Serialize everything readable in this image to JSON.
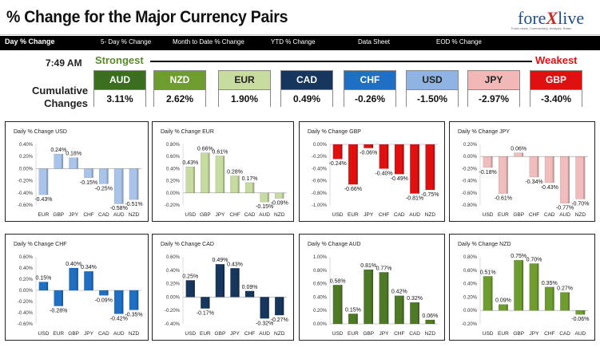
{
  "header": {
    "title": "% Change for the Major Currency Pairs",
    "logo_prefix": "fore",
    "logo_x": "X",
    "logo_suffix": "live",
    "tagline": "Forex news, Commentary, Analysis, Rates"
  },
  "nav": [
    "Day % Change",
    "5- Day % Change",
    "Month to Date % Change",
    "YTD % Change",
    "Data Sheet",
    "EOD % Change"
  ],
  "summary": {
    "time": "7:49 AM",
    "strongest_label": "Strongest",
    "weakest_label": "Weakest",
    "cumulative_label_1": "Cumulative",
    "cumulative_label_2": "Changes",
    "currencies": [
      {
        "name": "AUD",
        "value": "3.11%",
        "color": "#3b6e1f",
        "text_color": "#ffffff"
      },
      {
        "name": "NZD",
        "value": "2.62%",
        "color": "#6f9c2e",
        "text_color": "#ffffff"
      },
      {
        "name": "EUR",
        "value": "1.90%",
        "color": "#c9dca0",
        "text_color": "#222222"
      },
      {
        "name": "CAD",
        "value": "0.49%",
        "color": "#17365d",
        "text_color": "#ffffff"
      },
      {
        "name": "CHF",
        "value": "-0.26%",
        "color": "#1f6fc5",
        "text_color": "#ffffff"
      },
      {
        "name": "USD",
        "value": "-1.50%",
        "color": "#8fb4e3",
        "text_color": "#222222"
      },
      {
        "name": "JPY",
        "value": "-2.97%",
        "color": "#f2b8b8",
        "text_color": "#222222"
      },
      {
        "name": "GBP",
        "value": "-3.40%",
        "color": "#e01010",
        "text_color": "#ffffff"
      }
    ]
  },
  "chart_data": [
    {
      "type": "bar",
      "title": "Daily % Change USD",
      "categories": [
        "EUR",
        "GBP",
        "JPY",
        "CHF",
        "CAD",
        "AUD",
        "NZD"
      ],
      "values": [
        -0.43,
        0.24,
        0.18,
        -0.15,
        -0.25,
        -0.58,
        -0.51
      ],
      "labels": [
        "-0.43%",
        "0.24%",
        "0.18%",
        "-0.15%",
        "-0.25%",
        "-0.58%",
        "-0.51%"
      ],
      "ylim": [
        -0.6,
        0.4
      ],
      "yticks": [
        "0.40%",
        "0.20%",
        "0.00%",
        "-0.20%",
        "-0.40%",
        "-0.60%"
      ],
      "color": "#a9c4ea"
    },
    {
      "type": "bar",
      "title": "Daily % Change EUR",
      "categories": [
        "USD",
        "GBP",
        "JPY",
        "CHF",
        "CAD",
        "AUD",
        "NZD"
      ],
      "values": [
        0.43,
        0.66,
        0.61,
        0.28,
        0.17,
        -0.15,
        -0.09
      ],
      "labels": [
        "0.43%",
        "0.66%",
        "0.61%",
        "0.28%",
        "0.17%",
        "-0.15%",
        "-0.09%"
      ],
      "ylim": [
        -0.2,
        0.8
      ],
      "yticks": [
        "0.80%",
        "0.60%",
        "0.40%",
        "0.20%",
        "0.00%",
        "-0.20%"
      ],
      "color": "#c5dba0"
    },
    {
      "type": "bar",
      "title": "Daily % Change GBP",
      "categories": [
        "USD",
        "EUR",
        "JPY",
        "CHF",
        "CAD",
        "AUD",
        "NZD"
      ],
      "values": [
        -0.24,
        -0.66,
        -0.06,
        -0.4,
        -0.49,
        -0.81,
        -0.75
      ],
      "labels": [
        "-0.24%",
        "-0.66%",
        "-0.06%",
        "-0.40%",
        "-0.49%",
        "-0.81%",
        "-0.75%"
      ],
      "ylim": [
        -1.0,
        0.0
      ],
      "yticks": [
        "0.00%",
        "-0.20%",
        "-0.40%",
        "-0.60%",
        "-0.80%",
        "-1.00%"
      ],
      "color": "#e01010"
    },
    {
      "type": "bar",
      "title": "Daily % Change JPY",
      "categories": [
        "USD",
        "EUR",
        "GBP",
        "CHF",
        "CAD",
        "AUD",
        "NZD"
      ],
      "values": [
        -0.18,
        -0.61,
        0.06,
        -0.34,
        -0.43,
        -0.77,
        -0.7
      ],
      "labels": [
        "-0.18%",
        "-0.61%",
        "0.06%",
        "-0.34%",
        "-0.43%",
        "-0.77%",
        "-0.70%"
      ],
      "ylim": [
        -0.8,
        0.2
      ],
      "yticks": [
        "0.20%",
        "0.00%",
        "-0.20%",
        "-0.40%",
        "-0.60%",
        "-0.80%"
      ],
      "color": "#f0bcbc"
    },
    {
      "type": "bar",
      "title": "Daily % Change CHF",
      "categories": [
        "USD",
        "EUR",
        "GBP",
        "JPY",
        "CAD",
        "AUD",
        "NZD"
      ],
      "values": [
        0.15,
        -0.28,
        0.4,
        0.34,
        -0.09,
        -0.42,
        -0.35
      ],
      "labels": [
        "0.15%",
        "-0.28%",
        "0.40%",
        "0.34%",
        "-0.09%",
        "-0.42%",
        "-0.35%"
      ],
      "ylim": [
        -0.6,
        0.6
      ],
      "yticks": [
        "0.60%",
        "0.40%",
        "0.20%",
        "0.00%",
        "-0.20%",
        "-0.40%",
        "-0.60%"
      ],
      "color": "#1f6fc5"
    },
    {
      "type": "bar",
      "title": "Daily % Change CAD",
      "categories": [
        "USD",
        "EUR",
        "GBP",
        "JPY",
        "CHF",
        "AUD",
        "NZD"
      ],
      "values": [
        0.25,
        -0.17,
        0.49,
        0.43,
        0.09,
        -0.32,
        -0.27
      ],
      "labels": [
        "0.25%",
        "-0.17%",
        "0.49%",
        "0.43%",
        "0.09%",
        "-0.32%",
        "-0.27%"
      ],
      "ylim": [
        -0.4,
        0.6
      ],
      "yticks": [
        "0.60%",
        "0.40%",
        "0.20%",
        "0.00%",
        "-0.20%",
        "-0.40%"
      ],
      "color": "#17365d"
    },
    {
      "type": "bar",
      "title": "Daily % Change AUD",
      "categories": [
        "USD",
        "EUR",
        "GBP",
        "JPY",
        "CHF",
        "CAD",
        "NZD"
      ],
      "values": [
        0.58,
        0.15,
        0.81,
        0.77,
        0.42,
        0.32,
        0.06
      ],
      "labels": [
        "0.58%",
        "0.15%",
        "0.81%",
        "0.77%",
        "0.42%",
        "0.32%",
        "0.06%"
      ],
      "ylim": [
        0.0,
        1.0
      ],
      "yticks": [
        "1.00%",
        "0.80%",
        "0.60%",
        "0.40%",
        "0.20%",
        "0.00%"
      ],
      "color": "#4e7a26"
    },
    {
      "type": "bar",
      "title": "Daily % Change NZD",
      "categories": [
        "USD",
        "EUR",
        "GBP",
        "JPY",
        "CHF",
        "CAD",
        "AUD"
      ],
      "values": [
        0.51,
        0.09,
        0.75,
        0.7,
        0.35,
        0.27,
        -0.06
      ],
      "labels": [
        "0.51%",
        "0.09%",
        "0.75%",
        "0.70%",
        "0.35%",
        "0.27%",
        "-0.06%"
      ],
      "ylim": [
        -0.2,
        0.8
      ],
      "yticks": [
        "0.80%",
        "0.60%",
        "0.40%",
        "0.20%",
        "0.00%",
        "-0.20%"
      ],
      "color": "#6f9c2e"
    }
  ]
}
